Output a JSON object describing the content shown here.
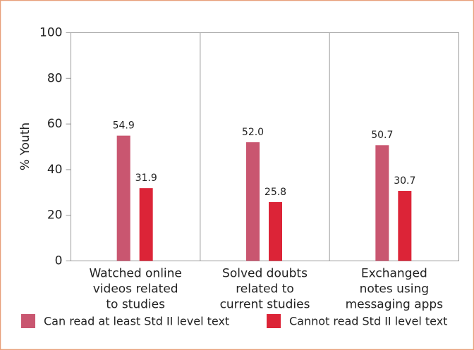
{
  "chart_data": {
    "type": "bar",
    "y_label": "% Youth",
    "categories": [
      [
        "Watched online",
        "videos related",
        "to studies"
      ],
      [
        "Solved doubts",
        "related to",
        "current studies"
      ],
      [
        "Exchanged",
        "notes using",
        "messaging apps"
      ]
    ],
    "series": [
      {
        "name": "Can read at least Std II level text",
        "color": "#c95670",
        "values": [
          54.9,
          52.0,
          50.7
        ],
        "value_labels": [
          "54.9",
          "52.0",
          "50.7"
        ]
      },
      {
        "name": "Cannot read Std II level text",
        "color": "#dc2437",
        "values": [
          31.9,
          25.8,
          30.7
        ],
        "value_labels": [
          "31.9",
          "25.8",
          "30.7"
        ]
      }
    ],
    "ylim": [
      0,
      100
    ],
    "yticks": [
      0,
      20,
      40,
      60,
      80,
      100
    ],
    "grid": false,
    "legend": "bottom"
  }
}
